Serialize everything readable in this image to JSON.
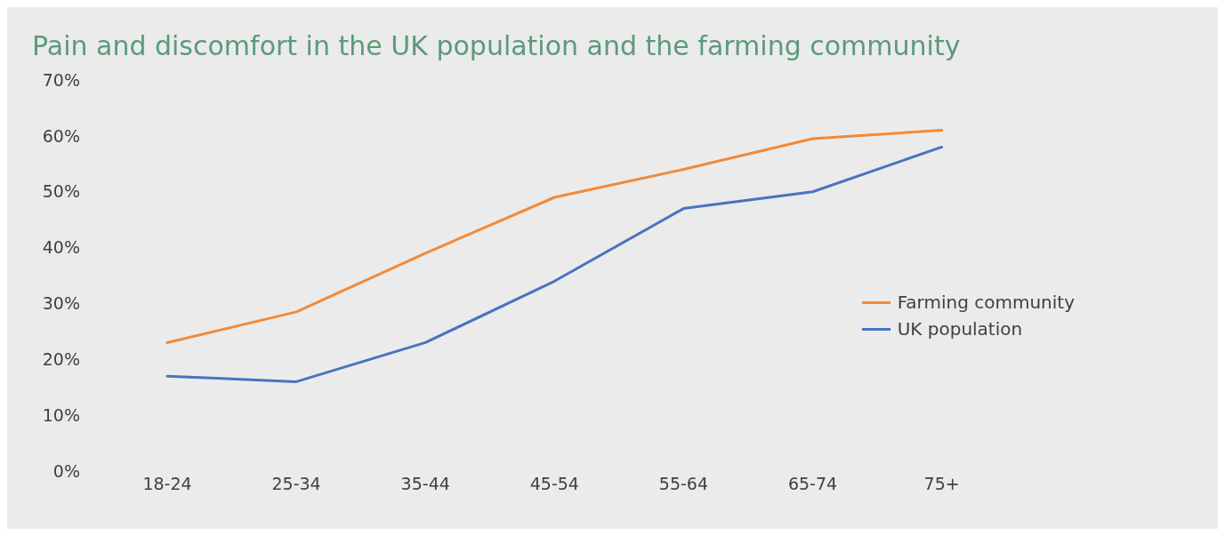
{
  "chart_data": {
    "type": "line",
    "title": "Pain and discomfort in the UK population and the farming community",
    "categories": [
      "18-24",
      "25-34",
      "35-44",
      "45-54",
      "55-64",
      "65-74",
      "75+"
    ],
    "series": [
      {
        "name": "Farming community",
        "color": "#f28a38",
        "values": [
          23,
          28.5,
          39,
          49,
          54,
          59.5,
          61
        ]
      },
      {
        "name": "UK population",
        "color": "#4a72c0",
        "values": [
          17,
          16,
          23,
          34,
          47,
          50,
          58
        ]
      }
    ],
    "ylim": [
      0,
      70
    ],
    "yticks": [
      {
        "value": 0,
        "label": "0%"
      },
      {
        "value": 10,
        "label": "10%"
      },
      {
        "value": 20,
        "label": "20%"
      },
      {
        "value": 30,
        "label": "30%"
      },
      {
        "value": 40,
        "label": "40%"
      },
      {
        "value": 50,
        "label": "50%"
      },
      {
        "value": 60,
        "label": "60%"
      },
      {
        "value": 70,
        "label": "70%"
      }
    ],
    "grid": false,
    "legend": "right",
    "marker": "none",
    "line_style": "solid"
  }
}
